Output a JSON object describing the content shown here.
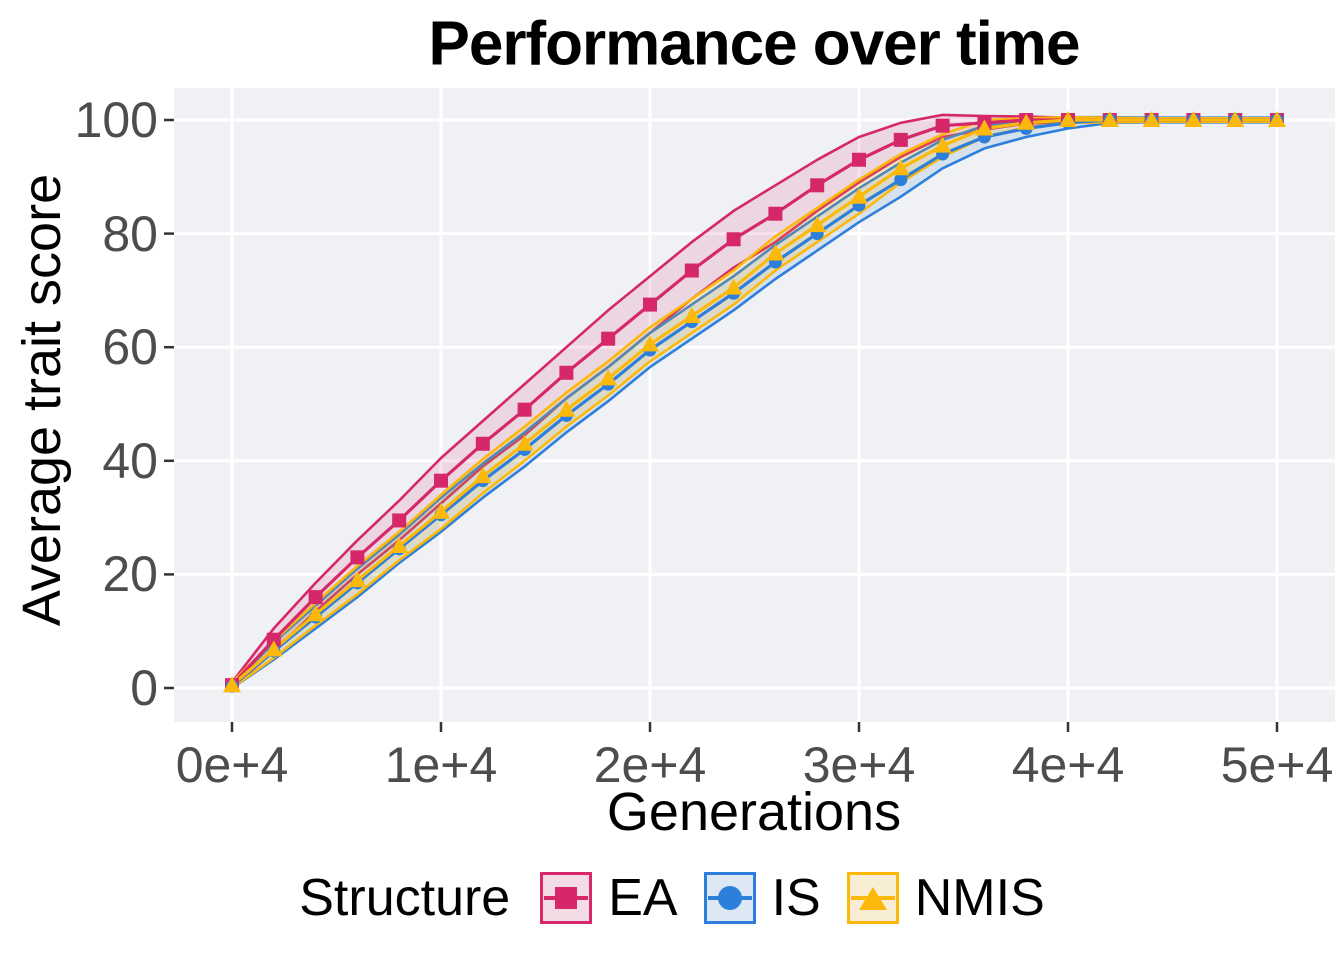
{
  "title": "Performance over time",
  "axes": {
    "x": {
      "label": "Generations",
      "tick_labels": [
        "0e+4",
        "1e+4",
        "2e+4",
        "3e+4",
        "4e+4",
        "5e+4"
      ],
      "tick_values": [
        0,
        10000,
        20000,
        30000,
        40000,
        50000
      ]
    },
    "y": {
      "label": "Average trait score",
      "tick_labels": [
        "0",
        "20",
        "40",
        "60",
        "80",
        "100"
      ],
      "tick_values": [
        0,
        20,
        40,
        60,
        80,
        100
      ]
    }
  },
  "legend": {
    "title": "Structure",
    "entries": [
      {
        "label": "EA",
        "marker": "square",
        "color": "#D5276A",
        "key_fill": "#F3DBE6"
      },
      {
        "label": "IS",
        "marker": "circle",
        "color": "#2E7FDB",
        "key_fill": "#DEE8F5"
      },
      {
        "label": "NMIS",
        "marker": "triangle",
        "color": "#FCB90B",
        "key_fill": "#F8EED6"
      }
    ]
  },
  "colors": {
    "panel_bg": "#EFF1F4",
    "grid": "#FFFFFF",
    "tick_mark": "#333333",
    "tick_text": "#4D4D4D",
    "text": "#000000"
  },
  "chart_data": {
    "type": "line",
    "title": "Performance over time",
    "xlabel": "Generations",
    "ylabel": "Average trait score",
    "xlim": [
      0,
      50000
    ],
    "ylim": [
      0,
      100
    ],
    "grid": true,
    "legend_position": "bottom",
    "x": [
      0,
      2000,
      4000,
      6000,
      8000,
      10000,
      12000,
      14000,
      16000,
      18000,
      20000,
      22000,
      24000,
      26000,
      28000,
      30000,
      32000,
      34000,
      36000,
      38000,
      40000,
      42000,
      44000,
      46000,
      48000,
      50000
    ],
    "series": [
      {
        "name": "EA",
        "marker": "square",
        "color": "#D5276A",
        "ribbon_fill": "rgba(213,39,106,0.13)",
        "values": [
          0.5,
          8.5,
          16,
          23,
          29.5,
          36.5,
          43,
          49,
          55.5,
          61.5,
          67.5,
          73.5,
          79,
          83.5,
          88.5,
          93,
          96.5,
          99,
          99.5,
          100,
          100,
          100,
          100,
          100,
          100,
          100
        ],
        "ribbon_halfwidth": [
          0.5,
          2,
          2.5,
          3,
          3.5,
          4,
          4,
          4.5,
          4.5,
          5,
          5,
          5,
          5,
          5,
          4.5,
          4,
          3,
          2,
          1.2,
          0.6,
          0.4,
          0.3,
          0.3,
          0.3,
          0.3,
          0.3
        ]
      },
      {
        "name": "IS",
        "marker": "circle",
        "color": "#2E7FDB",
        "ribbon_fill": "rgba(46,127,219,0.13)",
        "values": [
          0.3,
          6.5,
          12.5,
          18.5,
          24.5,
          30.5,
          36.5,
          42,
          48,
          53.5,
          59.5,
          64.5,
          69.5,
          75,
          80,
          85,
          89.5,
          94,
          97,
          98.5,
          99.5,
          100,
          100,
          100,
          100,
          100
        ],
        "ribbon_halfwidth": [
          0.3,
          1.5,
          2,
          2.5,
          2.5,
          3,
          3,
          3,
          3,
          3,
          3,
          3,
          3,
          3,
          3,
          3,
          3,
          2.5,
          2,
          1.5,
          1,
          0.5,
          0.4,
          0.4,
          0.4,
          0.4
        ]
      },
      {
        "name": "NMIS",
        "marker": "triangle",
        "color": "#FCB90B",
        "ribbon_fill": "rgba(252,185,11,0.18)",
        "values": [
          0.5,
          6.8,
          13,
          19,
          25,
          31,
          37.3,
          43,
          49,
          54.5,
          60.5,
          65.5,
          70.5,
          76.5,
          81.5,
          86.5,
          91.5,
          95.5,
          98.5,
          99.5,
          100,
          100,
          100,
          100,
          100,
          100
        ],
        "ribbon_halfwidth": [
          0.5,
          1.5,
          2,
          2.5,
          2.5,
          3,
          3,
          3,
          3,
          3,
          3,
          3,
          3,
          3,
          3,
          3,
          2.5,
          2,
          1.5,
          0.8,
          0.5,
          0.4,
          0.3,
          0.3,
          0.3,
          0.3
        ]
      }
    ]
  }
}
